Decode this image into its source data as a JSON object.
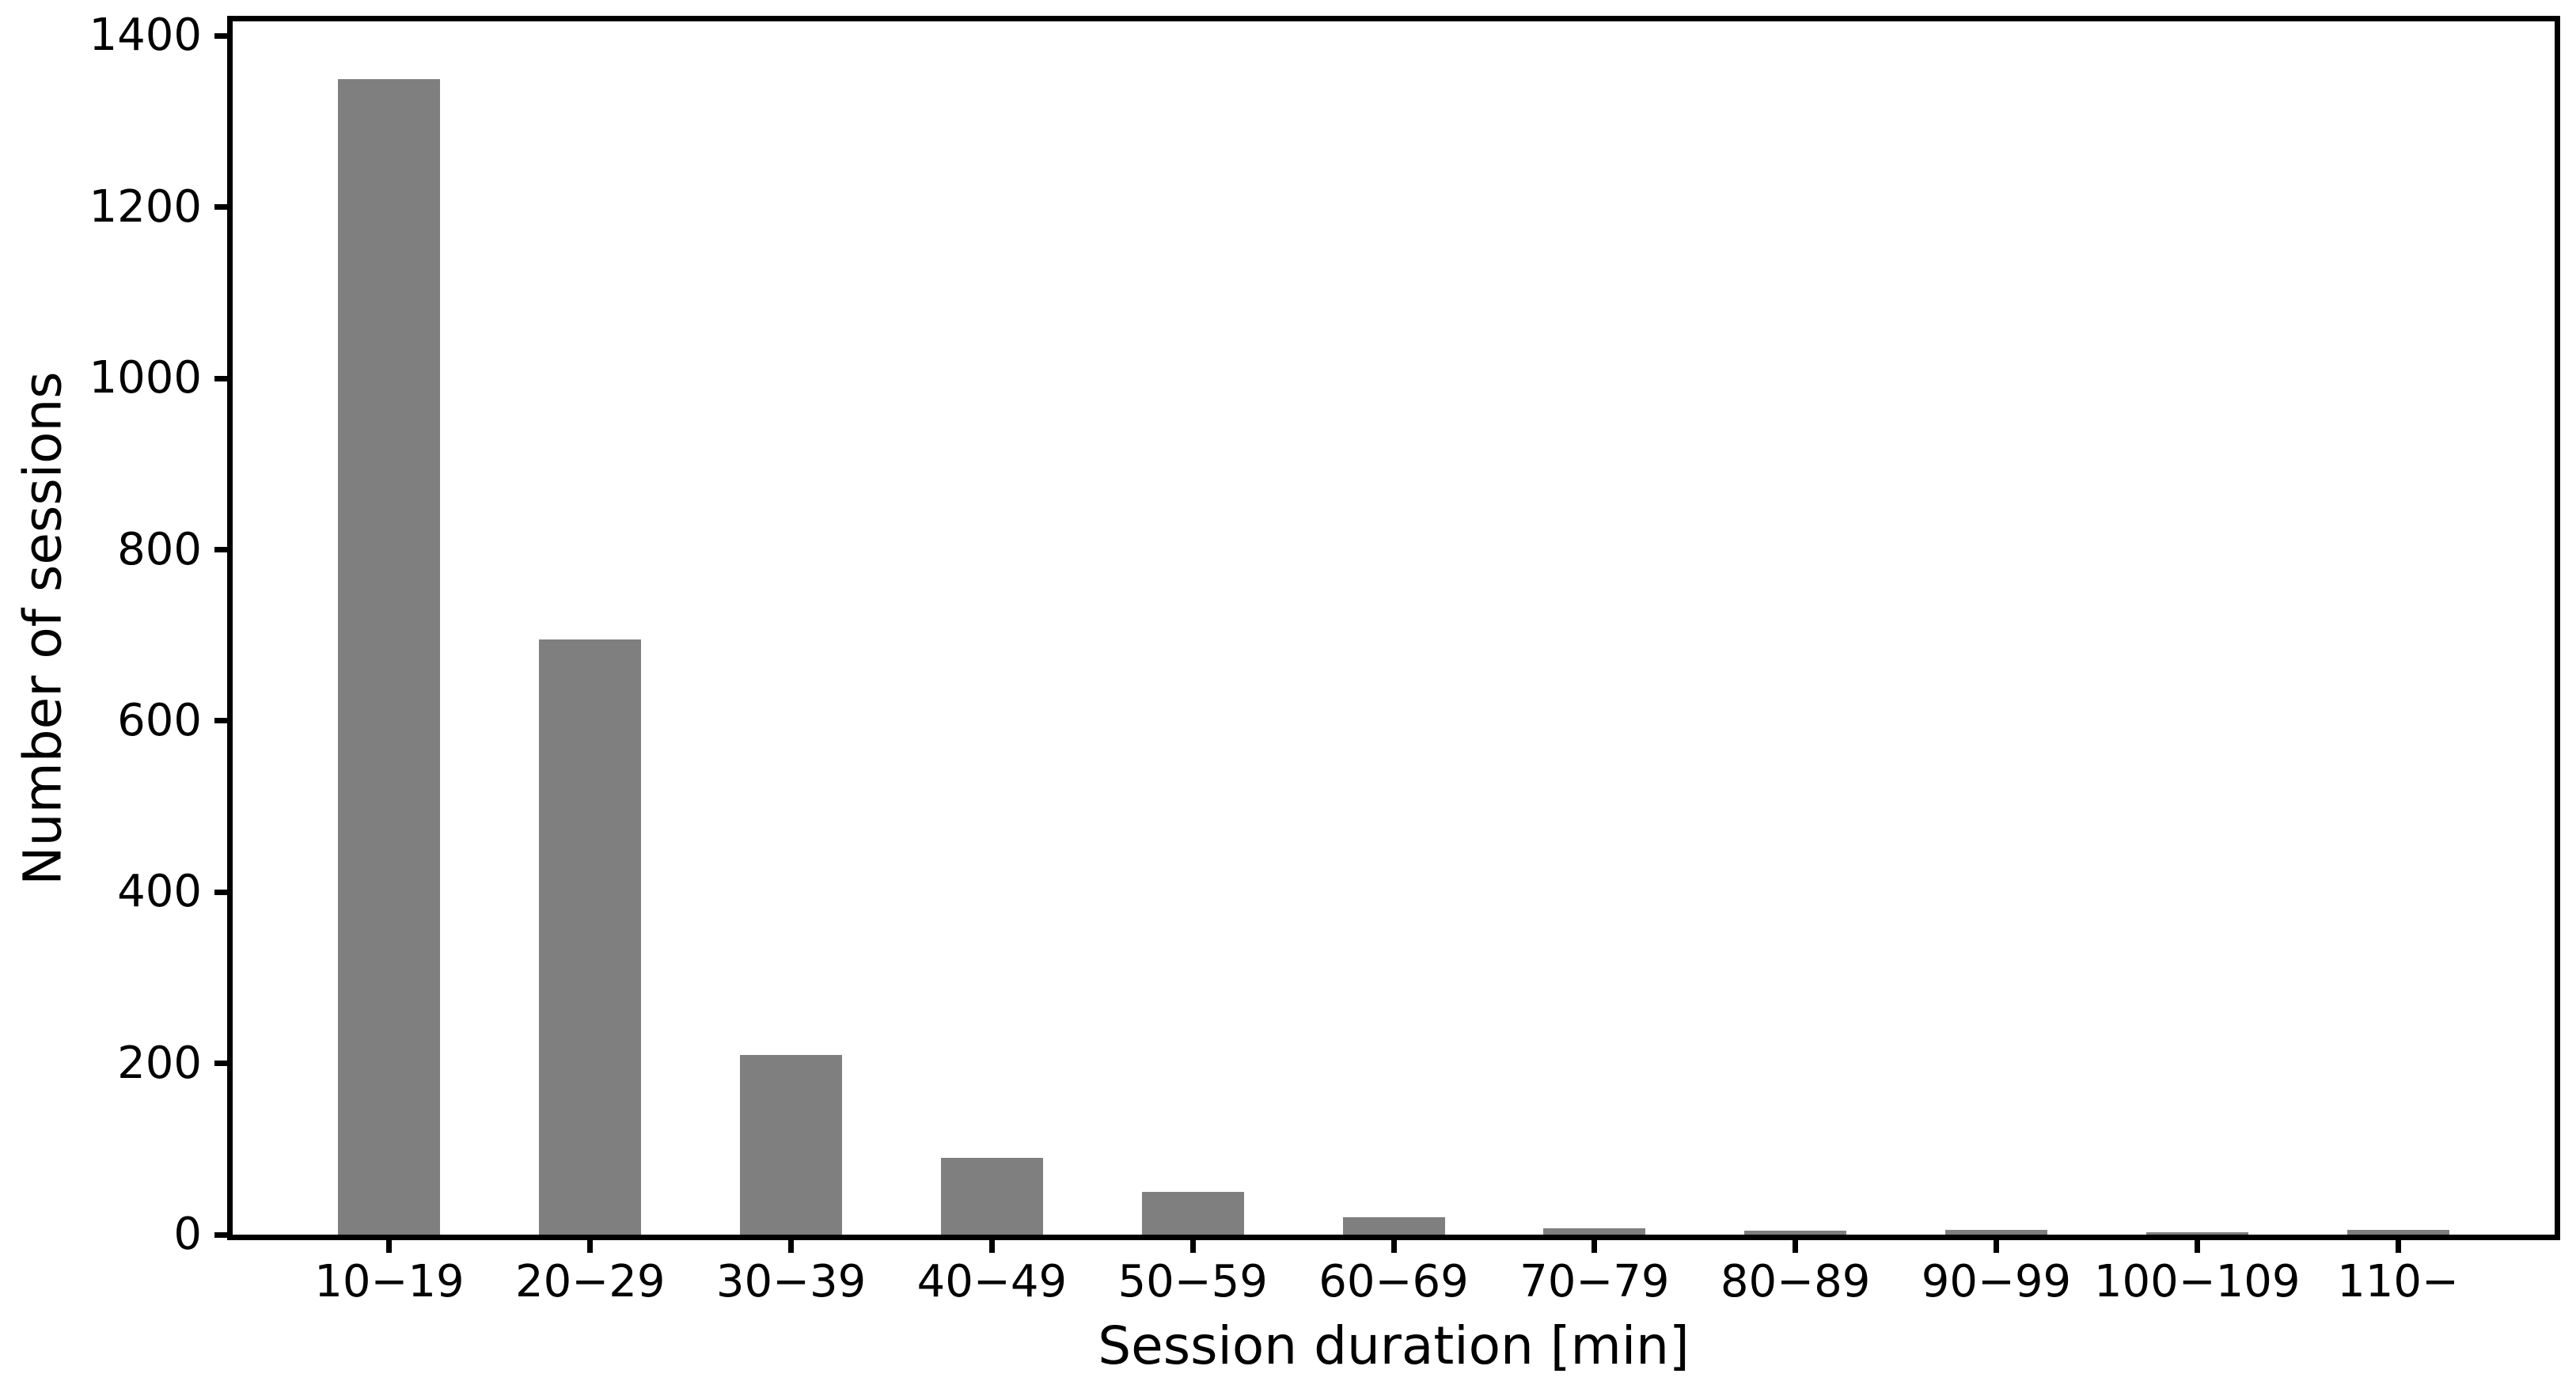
{
  "figure": {
    "background": "#ffffff"
  },
  "chart_data": {
    "type": "bar",
    "title": "",
    "xlabel": "Session duration [min]",
    "ylabel": "Number of sessions",
    "categories": [
      "10−19",
      "20−29",
      "30−39",
      "40−49",
      "50−59",
      "60−69",
      "70−79",
      "80−89",
      "90−99",
      "100−109",
      "110−"
    ],
    "values": [
      1350,
      695,
      210,
      90,
      50,
      20,
      7,
      5,
      6,
      3,
      6
    ],
    "yticks": [
      0,
      200,
      400,
      600,
      800,
      1000,
      1200,
      1400
    ],
    "ylim": [
      0,
      1417
    ],
    "bar_color": "#7f7f7f",
    "axis_color": "#000000",
    "text_color": "#000000",
    "grid": false,
    "legend": null
  }
}
